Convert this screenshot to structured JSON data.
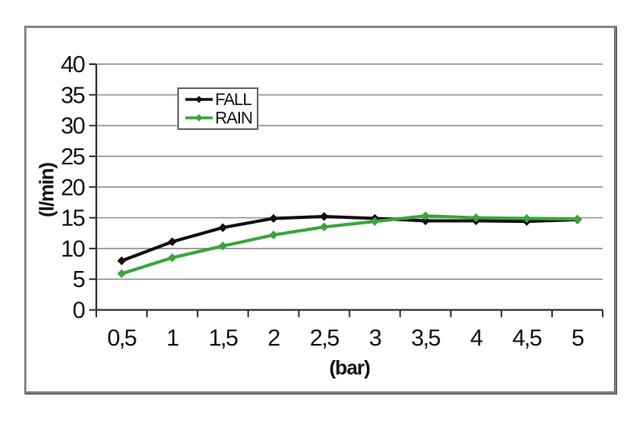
{
  "chart_data": {
    "type": "line",
    "title": "",
    "xlabel": "(bar)",
    "ylabel": "(l/min)",
    "x": [
      0.5,
      1,
      1.5,
      2,
      2.5,
      3,
      3.5,
      4,
      4.5,
      5
    ],
    "x_tick_labels": [
      "0,5",
      "1",
      "1,5",
      "2",
      "2,5",
      "3",
      "3,5",
      "4",
      "4,5",
      "5"
    ],
    "ylim": [
      0,
      40
    ],
    "y_ticks": [
      0,
      5,
      10,
      15,
      20,
      25,
      30,
      35,
      40
    ],
    "y_tick_labels": [
      "0",
      "5",
      "10",
      "15",
      "20",
      "25",
      "30",
      "35",
      "40"
    ],
    "grid": true,
    "legend_position": "inside-top-left",
    "marker": "diamond",
    "series": [
      {
        "name": "FALL",
        "color": "#111111",
        "values": [
          8,
          11.1,
          13.4,
          14.9,
          15.2,
          14.9,
          14.5,
          14.5,
          14.4,
          14.7
        ]
      },
      {
        "name": "RAIN",
        "color": "#3aa53a",
        "values": [
          5.9,
          8.5,
          10.4,
          12.2,
          13.5,
          14.4,
          15.3,
          15.0,
          14.9,
          14.8
        ]
      }
    ],
    "colors": {
      "grid": "#979797",
      "axis": "#333333",
      "tick_text": "#111111",
      "frame_border": "#7d7d7d",
      "background": "#ffffff"
    }
  }
}
